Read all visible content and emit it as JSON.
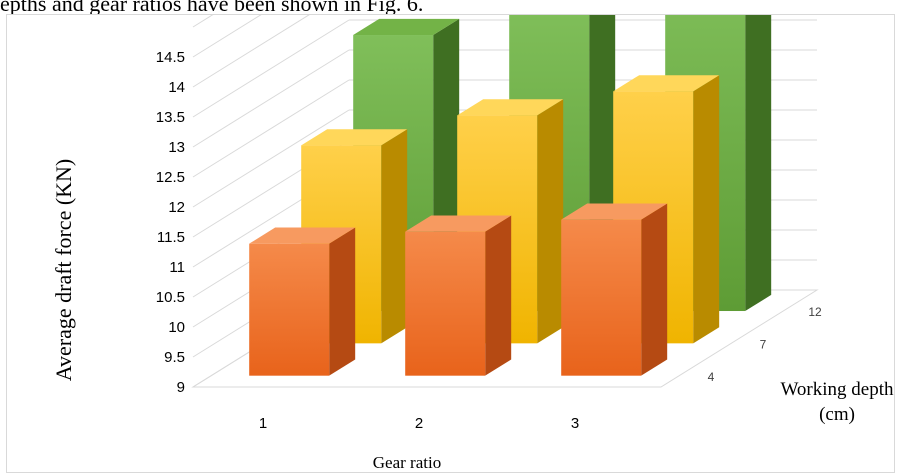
{
  "caption_fragment": "epths and gear ratios have been shown in Fig. 6.",
  "chart_data": {
    "type": "bar",
    "subtype": "3d-clustered-by-depth",
    "title": "",
    "xlabel": "Gear ratio",
    "ylabel": "Average draft force (KN)",
    "zlabel_line1": "Working depth",
    "zlabel_line2": "(cm)",
    "categories": [
      "1",
      "2",
      "3"
    ],
    "y_ticks": [
      "9",
      "9.5",
      "10",
      "10.5",
      "11",
      "11.5",
      "12",
      "12.5",
      "13",
      "13.5",
      "14",
      "14.5"
    ],
    "ylim": [
      9,
      14.5
    ],
    "grid": true,
    "legend": "none",
    "series": [
      {
        "name": "4",
        "values": [
          11.2,
          11.4,
          11.6
        ],
        "color": "#f07a2a"
      },
      {
        "name": "7",
        "values": [
          12.3,
          12.8,
          13.2
        ],
        "color": "#f8c21c"
      },
      {
        "name": "12",
        "values": [
          13.6,
          14.1,
          14.6
        ],
        "color": "#6aaa3f"
      }
    ]
  }
}
